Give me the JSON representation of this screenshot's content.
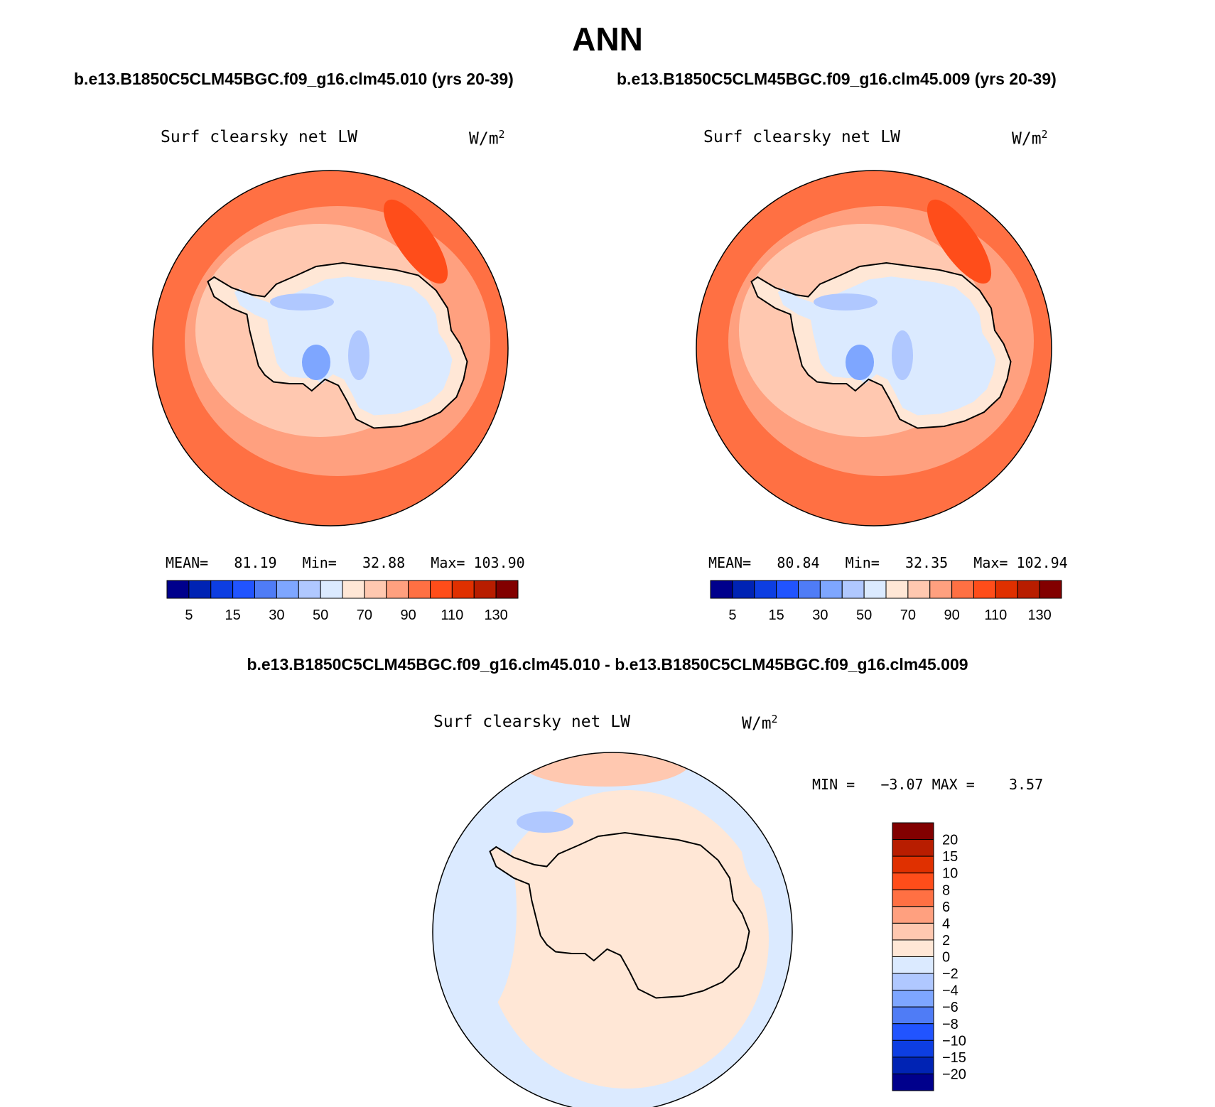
{
  "header": {
    "title": "ANN",
    "case_left": "b.e13.B1850C5CLM45BGC.f09_g16.clm45.010 (yrs 20-39)",
    "case_right": "b.e13.B1850C5CLM45BGC.f09_g16.clm45.009 (yrs 20-39)",
    "diff_title": "b.e13.B1850C5CLM45BGC.f09_g16.clm45.010 - b.e13.B1850C5CLM45BGC.f09_g16.clm45.009"
  },
  "panels": [
    {
      "variable": "Surf clearsky net LW",
      "units": "W/m",
      "units_sup": "2",
      "stats": "MEAN=   81.19   Min=   32.88   Max= 103.90"
    },
    {
      "variable": "Surf clearsky net LW",
      "units": "W/m",
      "units_sup": "2",
      "stats": "MEAN=   80.84   Min=   32.35   Max= 102.94"
    },
    {
      "variable": "Surf clearsky net LW",
      "units": "W/m",
      "units_sup": "2",
      "stats": "MIN =   −3.07 MAX =    3.57"
    }
  ],
  "colorbar_horizontal": {
    "colors": [
      "#00008c",
      "#0023b4",
      "#0d3ee2",
      "#2154ff",
      "#4f7cf6",
      "#7ea6ff",
      "#b0c8ff",
      "#dbeaff",
      "#ffe7d6",
      "#ffc8b0",
      "#ffa07f",
      "#ff7043",
      "#ff4d1a",
      "#e03000",
      "#b81d00",
      "#820000"
    ],
    "labels": [
      "5",
      "15",
      "30",
      "50",
      "70",
      "90",
      "110",
      "130"
    ]
  },
  "colorbar_vertical": {
    "colors": [
      "#820000",
      "#b81d00",
      "#e03000",
      "#ff4d1a",
      "#ff7043",
      "#ffa07f",
      "#ffc8b0",
      "#ffe7d6",
      "#dbeaff",
      "#b0c8ff",
      "#7ea6ff",
      "#4f7cf6",
      "#2154ff",
      "#0d3ee2",
      "#0023b4",
      "#00008c"
    ],
    "labels": [
      "20",
      "15",
      "10",
      "8",
      "6",
      "4",
      "2",
      "0",
      "−2",
      "−4",
      "−6",
      "−8",
      "−10",
      "−15",
      "−20"
    ]
  },
  "map_colors": {
    "outer_ocean": "#ff7043",
    "mid_ocean": "#ffa07f",
    "near_coast": "#ffc8b0",
    "coast_band": "#ffe7d6",
    "interior": "#dbeaff",
    "interior_low": "#b0c8ff",
    "interior_lowest": "#7ea6ff",
    "hot_spot": "#ff4d1a",
    "diff_base": "#dbeaff",
    "diff_positive": "#ffe7d6",
    "diff_positive_2": "#ffc8b0",
    "diff_negative_2": "#b0c8ff",
    "coastline": "#000000"
  }
}
